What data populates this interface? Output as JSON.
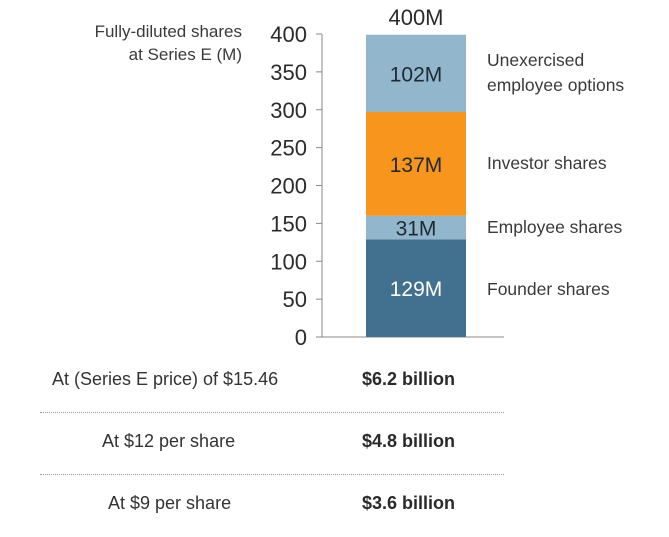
{
  "chart_data": {
    "type": "bar",
    "stacked": true,
    "categories": [
      "Fully-diluted shares at Series E"
    ],
    "ylabel": [
      "Fully-diluted shares",
      "at Series E (M)"
    ],
    "ylim": [
      0,
      400
    ],
    "yticks": [
      0,
      50,
      100,
      150,
      200,
      250,
      300,
      350,
      400
    ],
    "total_label": "400M",
    "series": [
      {
        "name": "Founder shares",
        "values": [
          129
        ],
        "value_label": "129M",
        "color": "#41718f",
        "text_color": "#ffffff"
      },
      {
        "name": "Employee shares",
        "values": [
          31
        ],
        "value_label": "31M",
        "color": "#92b6cc",
        "text_color": "#1e2a33"
      },
      {
        "name": "Investor shares",
        "values": [
          137
        ],
        "value_label": "137M",
        "color": "#f7951c",
        "text_color": "#1e2a33"
      },
      {
        "name": "Unexercised employee options",
        "name_lines": [
          "Unexercised",
          "employee options"
        ],
        "values": [
          102
        ],
        "value_label": "102M",
        "color": "#92b6cc",
        "text_color": "#1e2a33"
      }
    ]
  },
  "valuation_table": [
    {
      "label": "At (Series E price) of $15.46",
      "value": "$6.2 billion"
    },
    {
      "label": "At $12 per share",
      "value": "$4.8 billion"
    },
    {
      "label": "At $9 per share",
      "value": "$3.6 billion"
    }
  ]
}
